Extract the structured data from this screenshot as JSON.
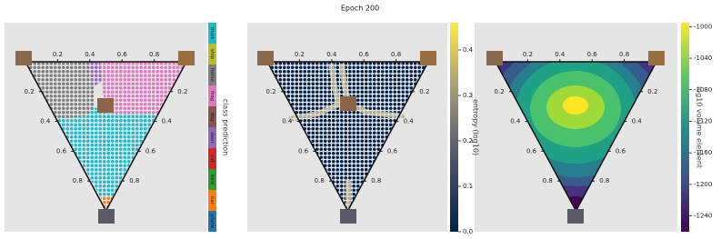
{
  "title": "Epoch 200",
  "chart_data": [
    {
      "type": "ternary",
      "edge_ticks": [
        0.2,
        0.4,
        0.6,
        0.8
      ],
      "colorbar": {
        "type": "categorical",
        "label": "class prediction",
        "categories": [
          "truck",
          "ship",
          "horse",
          "frog",
          "dog",
          "deer",
          "cat",
          "bird",
          "car",
          "plane"
        ],
        "colors": [
          "#17becf",
          "#bcbd22",
          "#7f7f7f",
          "#e377c2",
          "#8c564b",
          "#9467bd",
          "#d62728",
          "#2ca02c",
          "#ff7f0e",
          "#1f77b4"
        ]
      }
    },
    {
      "type": "ternary",
      "edge_ticks": [
        0.2,
        0.4,
        0.6,
        0.8
      ],
      "colorbar": {
        "type": "continuous",
        "label": "entropy (log10)",
        "lim": [
          0,
          0.46
        ],
        "ticks": [
          {
            "value": 0,
            "label": "0.0"
          },
          0.1,
          0.2,
          0.3,
          0.4
        ]
      }
    },
    {
      "type": "ternary",
      "edge_ticks": [
        0.2,
        0.4,
        0.6,
        0.8
      ],
      "colorbar": {
        "type": "continuous",
        "label": "log10 volume element",
        "lim": [
          -1260,
          -995
        ],
        "ticks": [
          -1000,
          -1040,
          -1080,
          -1120,
          -1160,
          -1200,
          -1240
        ]
      }
    }
  ]
}
